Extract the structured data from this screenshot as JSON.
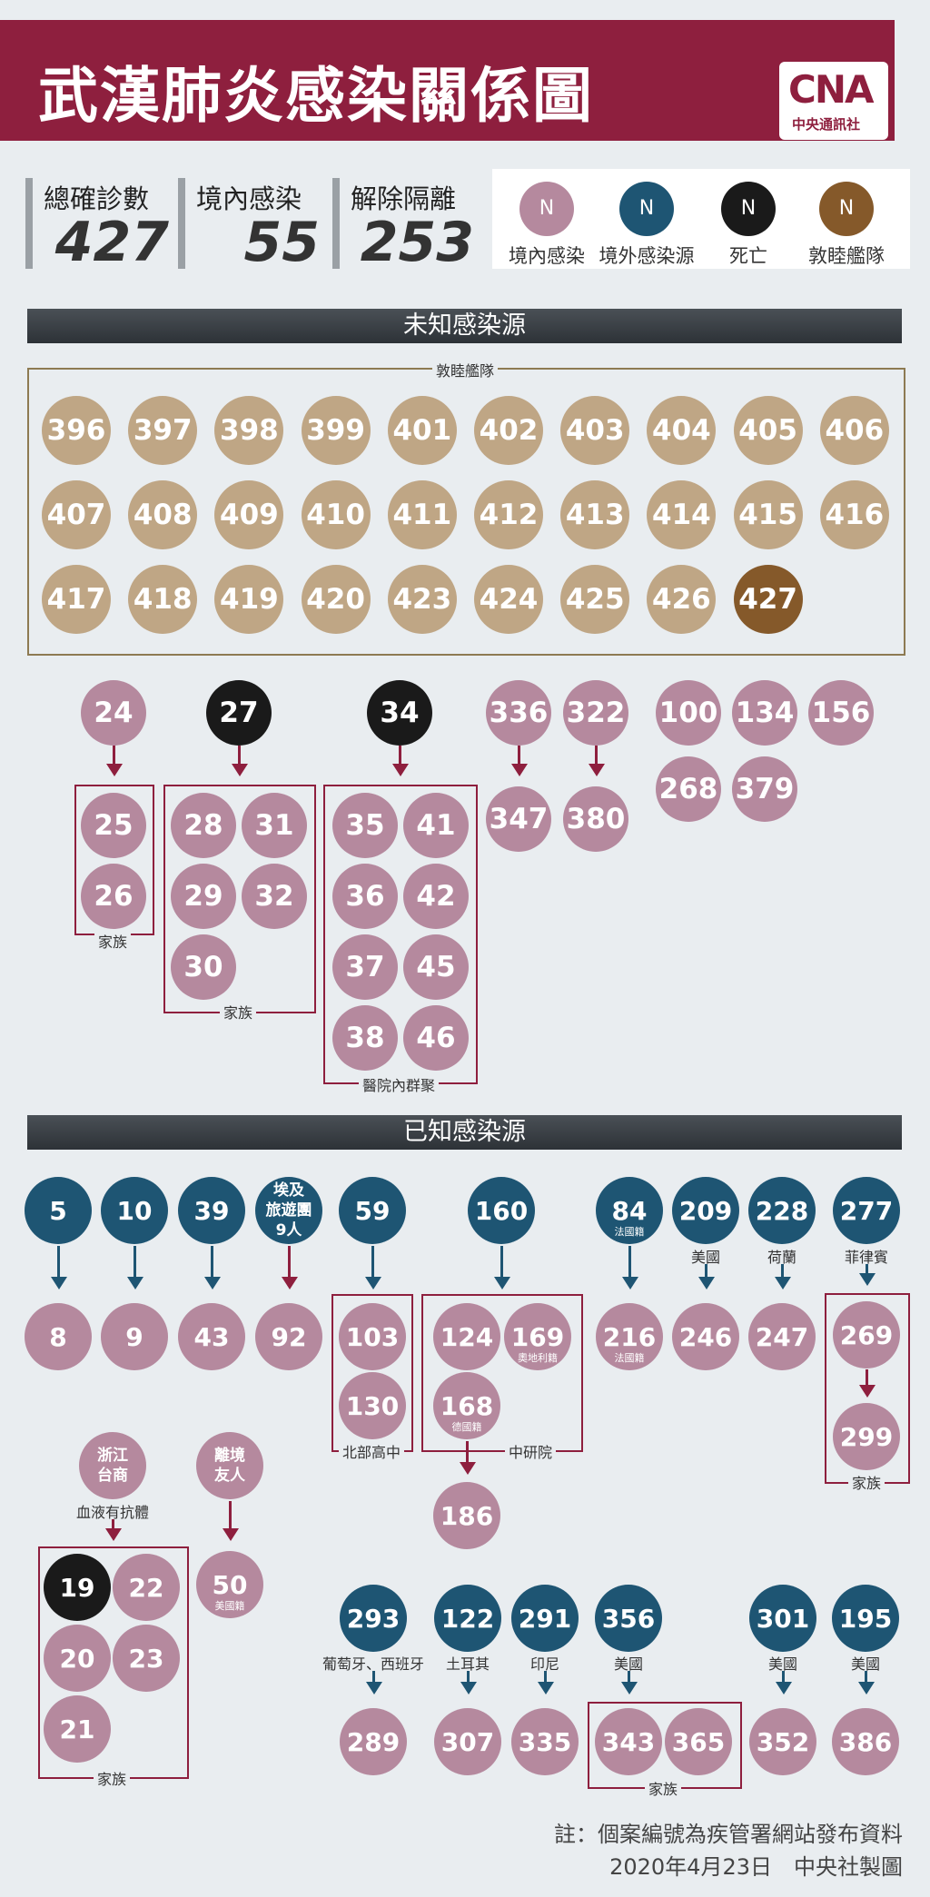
{
  "header": {
    "title": "武漢肺炎感染關係圖",
    "logo_mark": "CNA",
    "logo_sub": "中央通訊社"
  },
  "stats": [
    {
      "label": "總確診數",
      "value": "427"
    },
    {
      "label": "境內感染",
      "value": "55"
    },
    {
      "label": "解除隔離",
      "value": "253"
    }
  ],
  "legend": [
    {
      "symbol": "N",
      "label": "境內感染",
      "color": "#b5899e"
    },
    {
      "symbol": "N",
      "label": "境外感染源",
      "color": "#1e5573"
    },
    {
      "symbol": "N",
      "label": "死亡",
      "color": "#1a1a1a"
    },
    {
      "symbol": "N",
      "label": "敦睦艦隊",
      "color": "#85592a"
    }
  ],
  "sections": {
    "unknown": "未知感染源",
    "known": "已知感染源"
  },
  "fleet": {
    "label": "敦睦艦隊",
    "cases": [
      "396",
      "397",
      "398",
      "399",
      "401",
      "402",
      "403",
      "404",
      "405",
      "406",
      "407",
      "408",
      "409",
      "410",
      "411",
      "412",
      "413",
      "414",
      "415",
      "416",
      "417",
      "418",
      "419",
      "420",
      "423",
      "424",
      "425",
      "426",
      "427"
    ]
  },
  "unknown_nodes": {
    "n24": "24",
    "n25": "25",
    "n26": "26",
    "fam1": "家族",
    "n27": "27",
    "n28": "28",
    "n31": "31",
    "n29": "29",
    "n32": "32",
    "n30": "30",
    "fam2": "家族",
    "n34": "34",
    "n35": "35",
    "n41": "41",
    "n36": "36",
    "n42": "42",
    "n37": "37",
    "n45": "45",
    "n38": "38",
    "n46": "46",
    "hosp": "醫院內群聚",
    "n336": "336",
    "n347": "347",
    "n322": "322",
    "n380": "380",
    "n100": "100",
    "n134": "134",
    "n156": "156",
    "n268": "268",
    "n379": "379"
  },
  "known_nodes": {
    "n5": "5",
    "n8": "8",
    "n10": "10",
    "n9": "9",
    "n39": "39",
    "n43": "43",
    "egypt_l1": "埃及",
    "egypt_l2": "旅遊團",
    "egypt_l3": "9人",
    "n92": "92",
    "n59": "59",
    "n103": "103",
    "n130": "130",
    "school": "北部高中",
    "n160": "160",
    "n124": "124",
    "n169": "169",
    "n169_sub": "奧地利籍",
    "n168": "168",
    "n168_sub": "德國籍",
    "academia": "中研院",
    "n186": "186",
    "n84": "84",
    "n84_sub": "法國籍",
    "n216": "216",
    "n216_sub": "法國籍",
    "n209": "209",
    "n209_lbl": "美國",
    "n246": "246",
    "n228": "228",
    "n228_lbl": "荷蘭",
    "n247": "247",
    "n277": "277",
    "n277_lbl": "菲律賓",
    "n269": "269",
    "n299": "299",
    "fam3": "家族",
    "zj_l1": "浙江",
    "zj_l2": "台商",
    "zj_lbl": "血液有抗體",
    "n19": "19",
    "n22": "22",
    "n20": "20",
    "n23": "23",
    "n21": "21",
    "fam4": "家族",
    "fr_l1": "離境",
    "fr_l2": "友人",
    "n50": "50",
    "n50_sub": "美國籍",
    "n293": "293",
    "n293_lbl": "葡萄牙、西班牙",
    "n289": "289",
    "n122": "122",
    "n122_lbl": "土耳其",
    "n307": "307",
    "n291": "291",
    "n291_lbl": "印尼",
    "n335": "335",
    "n356": "356",
    "n356_lbl": "美國",
    "n343": "343",
    "n365": "365",
    "fam5": "家族",
    "n301": "301",
    "n301_lbl": "美國",
    "n352": "352",
    "n195": "195",
    "n195_lbl": "美國",
    "n386": "386"
  },
  "footer": {
    "note": "註：個案編號為疾管署網站發布資料",
    "credit": "2020年4月23日　中央社製圖"
  }
}
